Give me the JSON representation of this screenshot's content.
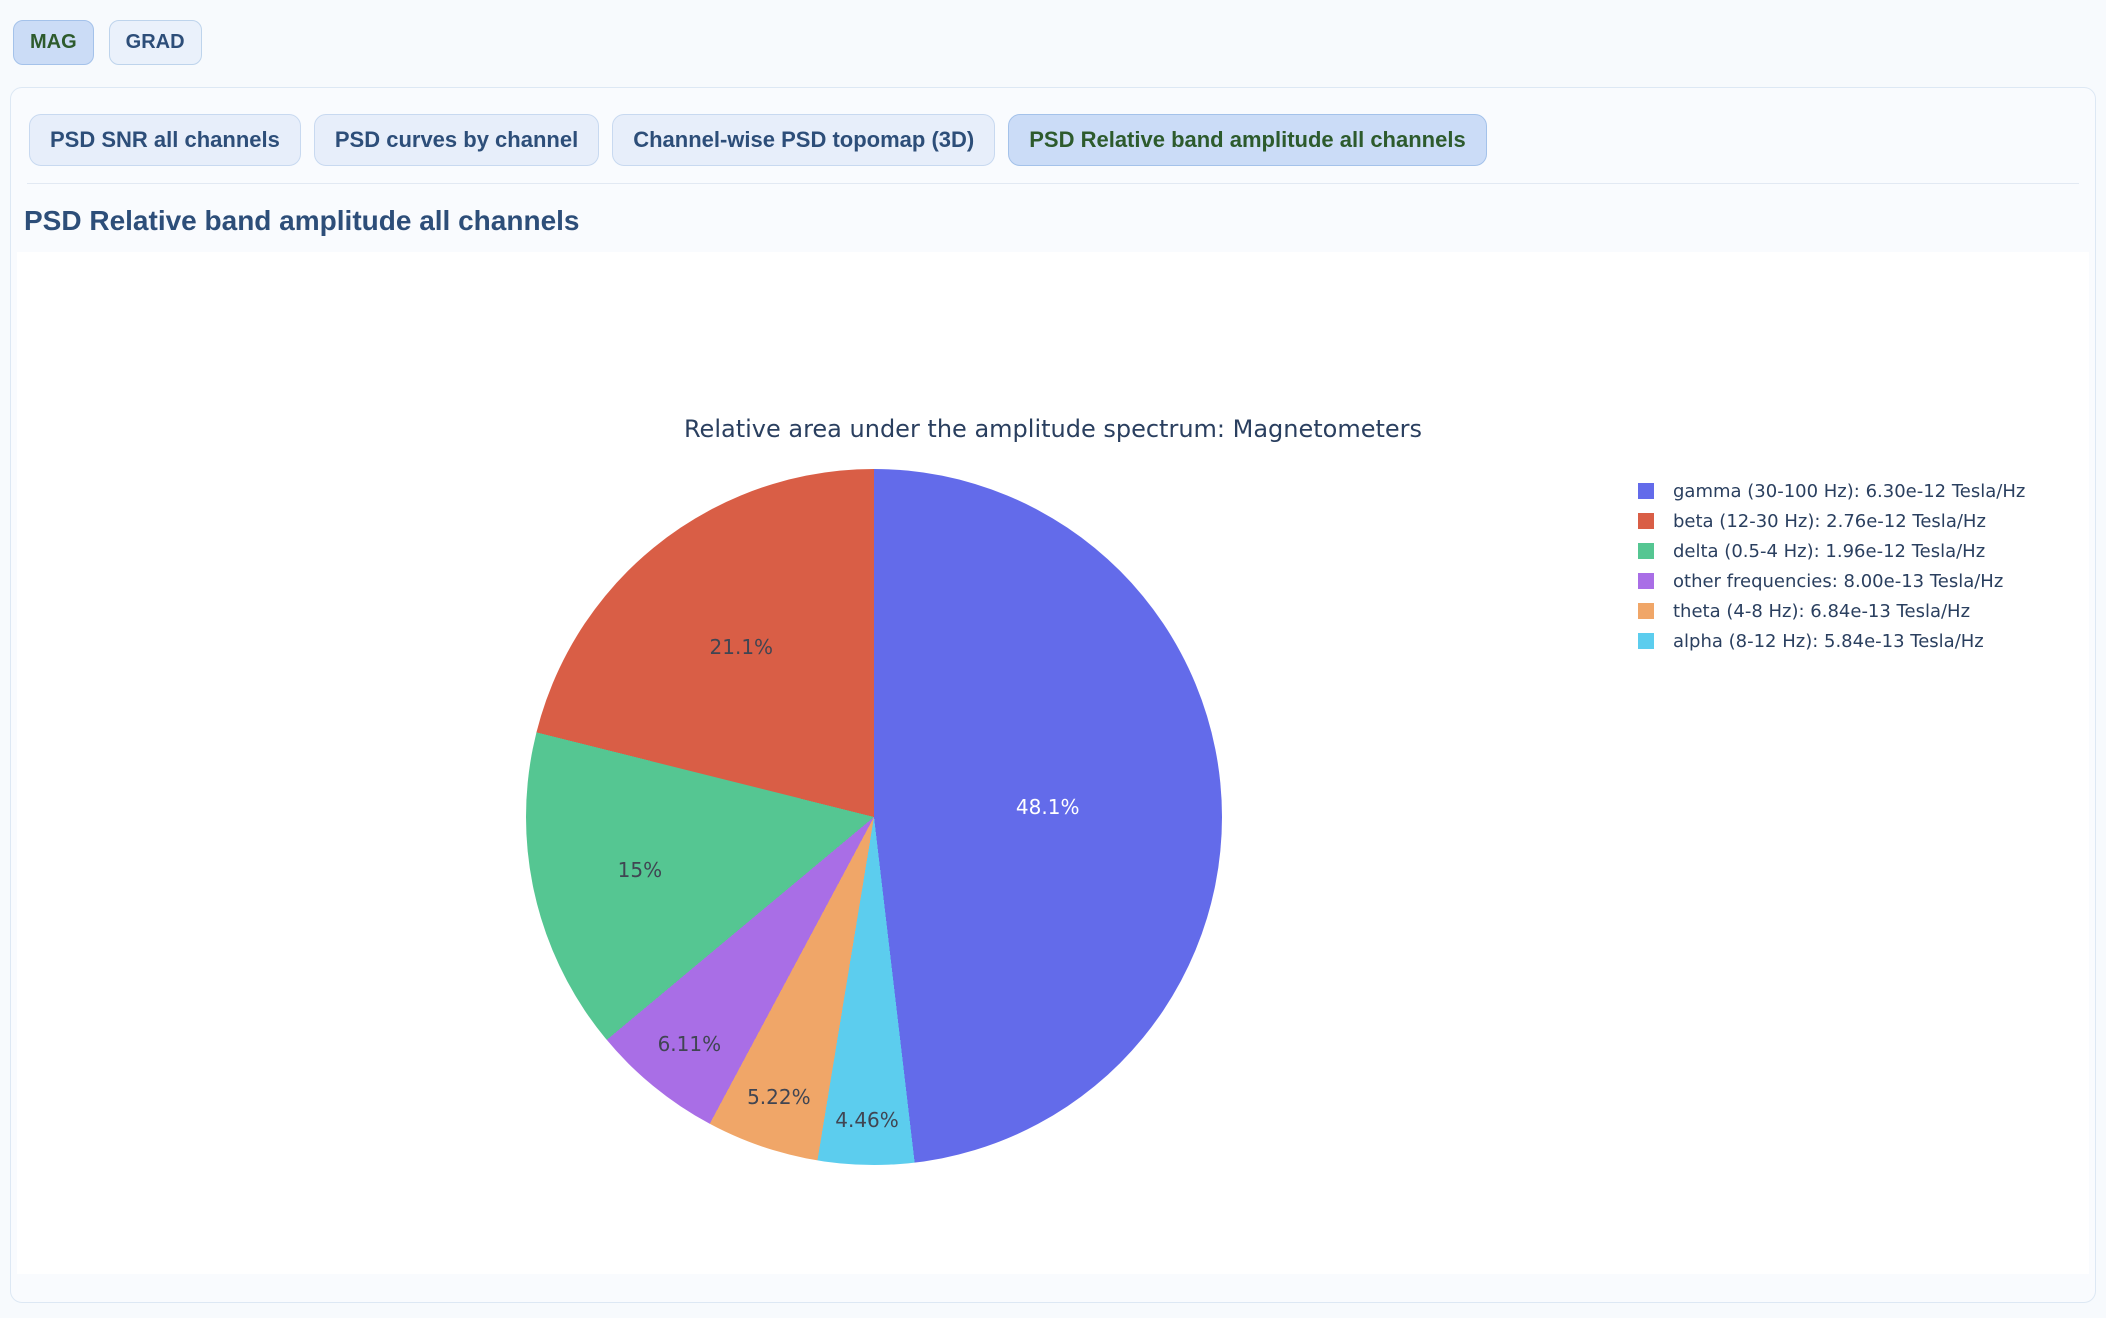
{
  "page": {
    "top_tabs": [
      {
        "label": "MAG",
        "selected": true
      },
      {
        "label": "GRAD",
        "selected": false
      }
    ],
    "sub_tabs": [
      {
        "label": "PSD SNR all channels",
        "selected": false
      },
      {
        "label": "PSD curves by channel",
        "selected": false
      },
      {
        "label": "Channel-wise PSD topomap (3D)",
        "selected": false
      },
      {
        "label": "PSD Relative band amplitude all channels",
        "selected": true
      }
    ],
    "section_heading": "PSD Relative band amplitude all channels"
  },
  "chart_data": {
    "type": "pie",
    "title": "Relative area under the amplitude spectrum: Magnetometers",
    "unit": "Tesla/Hz",
    "legend_position": "right",
    "slices": [
      {
        "name": "gamma (30-100 Hz)",
        "legend": "gamma (30-100 Hz): 6.30e-12 Tesla/Hz",
        "value": 6.3e-12,
        "value_display": "6.30e-12",
        "percent": 48.1,
        "percent_label": "48.1%",
        "color": "#636BEA",
        "text_color": "#ffffff",
        "label_r": 0.5
      },
      {
        "name": "beta (12-30 Hz)",
        "legend": "beta (12-30 Hz): 2.76e-12 Tesla/Hz",
        "value": 2.76e-12,
        "value_display": "2.76e-12",
        "percent": 21.1,
        "percent_label": "21.1%",
        "color": "#D95E46",
        "text_color": "#404552",
        "label_r": 0.62
      },
      {
        "name": "delta (0.5-4 Hz)",
        "legend": "delta (0.5-4 Hz): 1.96e-12 Tesla/Hz",
        "value": 1.96e-12,
        "value_display": "1.96e-12",
        "percent": 15.0,
        "percent_label": "15%",
        "color": "#55C692",
        "text_color": "#404552",
        "label_r": 0.69
      },
      {
        "name": "other frequencies",
        "legend": "other frequencies: 8.00e-13 Tesla/Hz",
        "value": 8e-13,
        "value_display": "8.00e-13",
        "percent": 6.11,
        "percent_label": "6.11%",
        "color": "#A96EE6",
        "text_color": "#404552",
        "label_r": 0.84
      },
      {
        "name": "theta (4-8 Hz)",
        "legend": "theta (4-8 Hz): 6.84e-13 Tesla/Hz",
        "value": 6.84e-13,
        "value_display": "6.84e-13",
        "percent": 5.22,
        "percent_label": "5.22%",
        "color": "#F0A668",
        "text_color": "#404552",
        "label_r": 0.85
      },
      {
        "name": "alpha (8-12 Hz)",
        "legend": "alpha (8-12 Hz): 5.84e-13 Tesla/Hz",
        "value": 5.84e-13,
        "value_display": "5.84e-13",
        "percent": 4.46,
        "percent_label": "4.46%",
        "color": "#5CCDEE",
        "text_color": "#404552",
        "label_r": 0.87
      }
    ]
  }
}
